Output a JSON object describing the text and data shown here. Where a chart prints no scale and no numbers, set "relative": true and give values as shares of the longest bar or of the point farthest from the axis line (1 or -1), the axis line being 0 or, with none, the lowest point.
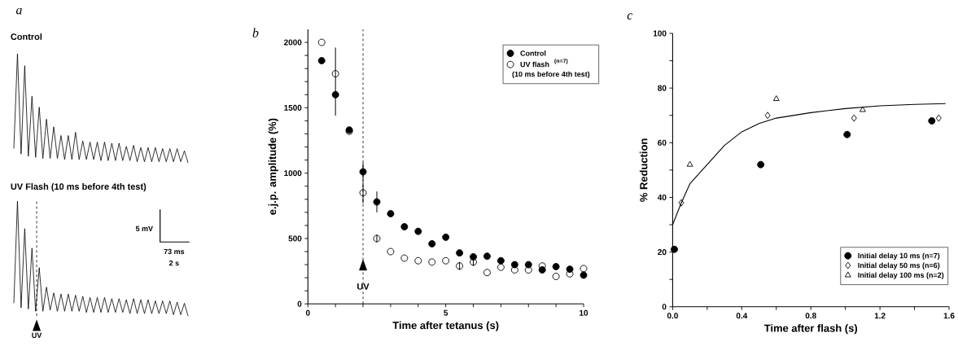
{
  "chart_data": [
    {
      "type": "line",
      "title": "Control",
      "relative": true,
      "annotations": [
        "a"
      ],
      "color": "#000000",
      "categories": [
        null,
        null,
        null,
        null,
        null,
        null,
        null,
        null,
        null,
        null,
        null,
        null,
        null,
        null,
        null,
        null,
        null,
        null,
        null,
        null,
        null,
        null,
        null,
        null,
        null,
        null,
        null,
        null,
        null,
        null,
        null,
        null,
        null,
        null,
        null,
        null,
        null,
        null,
        null,
        null,
        null,
        null,
        null,
        null,
        null,
        null,
        null,
        null,
        null
      ],
      "values": [
        0.13,
        1.0,
        0.08,
        0.89,
        0.06,
        0.61,
        0.05,
        0.51,
        0.04,
        0.4,
        0.04,
        0.33,
        0.04,
        0.25,
        0.03,
        0.25,
        0.03,
        0.28,
        0.03,
        0.2,
        0.03,
        0.19,
        0.03,
        0.19,
        0.02,
        0.19,
        0.02,
        0.18,
        0.02,
        0.18,
        0.02,
        0.15,
        0.02,
        0.16,
        0.01,
        0.14,
        0.01,
        0.14,
        0.01,
        0.14,
        0.01,
        0.13,
        0.01,
        0.13,
        0.01,
        0.13,
        0.01,
        0.11,
        0
      ]
    },
    {
      "type": "line",
      "title": "UV Flash (10 ms before 4th test)",
      "relative": true,
      "annotations": [
        "5 mV",
        "73 ms",
        "2 s",
        "UV"
      ],
      "color": "#000000",
      "categories": [
        null,
        null,
        null,
        null,
        null,
        null,
        null,
        null,
        null,
        null,
        null,
        null,
        null,
        null,
        null,
        null,
        null,
        null,
        null,
        null,
        null,
        null,
        null,
        null,
        null,
        null,
        null,
        null,
        null,
        null,
        null,
        null,
        null,
        null,
        null,
        null,
        null,
        null,
        null,
        null,
        null,
        null,
        null,
        null,
        null,
        null,
        null,
        null,
        null
      ],
      "values": [
        0.11,
        1.0,
        0.07,
        0.76,
        0.06,
        0.59,
        0.04,
        0.42,
        0.04,
        0.25,
        0.05,
        0.2,
        0.04,
        0.19,
        0.04,
        0.19,
        0.04,
        0.18,
        0.04,
        0.17,
        0.03,
        0.16,
        0.03,
        0.16,
        0.03,
        0.16,
        0.03,
        0.15,
        0.03,
        0.15,
        0.03,
        0.14,
        0.02,
        0.15,
        0.02,
        0.14,
        0.02,
        0.14,
        0.02,
        0.13,
        0.02,
        0.13,
        0.02,
        0.13,
        0.01,
        0.12,
        0.01,
        0.11,
        0
      ]
    },
    {
      "type": "scatter",
      "xlabel": "Time after tetanus (s)",
      "ylabel": "e.j.p. amplitude (%)",
      "annotations": [
        "b",
        "(n=7)",
        "(10 ms before 4th test)"
      ],
      "legend": "top right",
      "xlim": [
        0,
        10
      ],
      "ylim": [
        0,
        2100
      ],
      "xticks": [
        0,
        {
          "value": 1,
          "label": null
        },
        {
          "value": 2,
          "label": null
        },
        {
          "value": 3,
          "label": null
        },
        {
          "value": 4,
          "label": null
        },
        5,
        {
          "value": 6,
          "label": null
        },
        {
          "value": 7,
          "label": null
        },
        {
          "value": 8,
          "label": null
        },
        {
          "value": 9,
          "label": null
        },
        10
      ],
      "yticks": [
        0,
        {
          "value": 100,
          "label": null
        },
        {
          "value": 200,
          "label": null
        },
        {
          "value": 300,
          "label": null
        },
        {
          "value": 400,
          "label": null
        },
        500,
        {
          "value": 600,
          "label": null
        },
        {
          "value": 700,
          "label": null
        },
        {
          "value": 800,
          "label": null
        },
        {
          "value": 900,
          "label": null
        },
        1000,
        {
          "value": 1100,
          "label": null
        },
        {
          "value": 1200,
          "label": null
        },
        {
          "value": 1300,
          "label": null
        },
        {
          "value": 1400,
          "label": null
        },
        1500,
        {
          "value": 1600,
          "label": null
        },
        {
          "value": 1700,
          "label": null
        },
        {
          "value": 1800,
          "label": null
        },
        {
          "value": 1900,
          "label": null
        },
        2000
      ],
      "ref_lines": [
        {
          "axis": "x",
          "value": 2,
          "label": "UV",
          "line_style": "dashed"
        }
      ],
      "x": [
        0.5,
        1,
        1.5,
        2,
        2.5,
        3,
        3.5,
        4,
        4.5,
        5,
        5.5,
        6,
        6.5,
        7,
        7.5,
        8,
        8.5,
        9,
        9.5,
        10
      ],
      "series": [
        {
          "name": "Control",
          "color": "#000000",
          "marker": "circle",
          "values": [
            1860,
            1600,
            1330,
            1010,
            780,
            690,
            590,
            555,
            460,
            510,
            390,
            360,
            365,
            330,
            300,
            300,
            260,
            285,
            265,
            220
          ],
          "errors": [
            null,
            [
              1440,
              1960
            ],
            null,
            70,
            80,
            null,
            null,
            null,
            null,
            null,
            null,
            null,
            null,
            null,
            null,
            null,
            null,
            null,
            null,
            null
          ]
        },
        {
          "name": "UV flash",
          "color": "#000000",
          "marker": "circle",
          "values": [
            2000,
            1760,
            1320,
            850,
            500,
            400,
            350,
            330,
            320,
            330,
            290,
            320,
            240,
            280,
            260,
            260,
            290,
            210,
            230,
            270
          ],
          "errors": [
            null,
            null,
            null,
            80,
            30,
            null,
            null,
            null,
            null,
            null,
            30,
            30,
            null,
            null,
            null,
            null,
            null,
            null,
            null,
            null
          ]
        }
      ]
    },
    {
      "type": "scatter",
      "xlabel": "Time after flash (s)",
      "ylabel": "% Reduction",
      "annotations": [
        "c"
      ],
      "legend": "bottom right",
      "xlim": [
        0,
        1.6
      ],
      "ylim": [
        0,
        100
      ],
      "xticks": [
        {
          "value": 0,
          "label": "0.0"
        },
        {
          "value": 0.2,
          "label": null
        },
        0.4,
        {
          "value": 0.6,
          "label": null
        },
        0.8,
        {
          "value": 1.0,
          "label": null
        },
        1.2,
        {
          "value": 1.4,
          "label": null
        },
        1.6
      ],
      "yticks": [
        0,
        {
          "value": 10,
          "label": null
        },
        20,
        {
          "value": 30,
          "label": null
        },
        40,
        {
          "value": 50,
          "label": null
        },
        60,
        {
          "value": 70,
          "label": null
        },
        80,
        {
          "value": 90,
          "label": null
        },
        100
      ],
      "series": [
        {
          "name": "Initial delay 10 ms (n=7)",
          "color": "#000000",
          "marker": "circle",
          "x": [
            0.01,
            0.51,
            1.01,
            1.5
          ],
          "values": [
            21,
            52,
            63,
            68
          ]
        },
        {
          "name": "Initial delay 50 ms (n=6)",
          "color": "#000000",
          "marker": "diamond",
          "x": [
            0.05,
            0.55,
            1.05,
            1.54
          ],
          "values": [
            38,
            70,
            69,
            69
          ]
        },
        {
          "name": "Initial delay 100 ms (n=2)",
          "color": "#000000",
          "marker": "triangle",
          "x": [
            0.1,
            0.6,
            1.1
          ],
          "values": [
            52,
            76,
            72
          ]
        },
        {
          "type": "line",
          "color": "#000000",
          "x": [
            0,
            0.05,
            0.1,
            0.2,
            0.3,
            0.4,
            0.5,
            0.6,
            0.8,
            1.0,
            1.2,
            1.4,
            1.58
          ],
          "values": [
            30,
            38,
            45,
            52,
            59,
            64,
            67,
            69,
            71,
            72.5,
            73.5,
            74,
            74.3
          ]
        }
      ]
    }
  ]
}
